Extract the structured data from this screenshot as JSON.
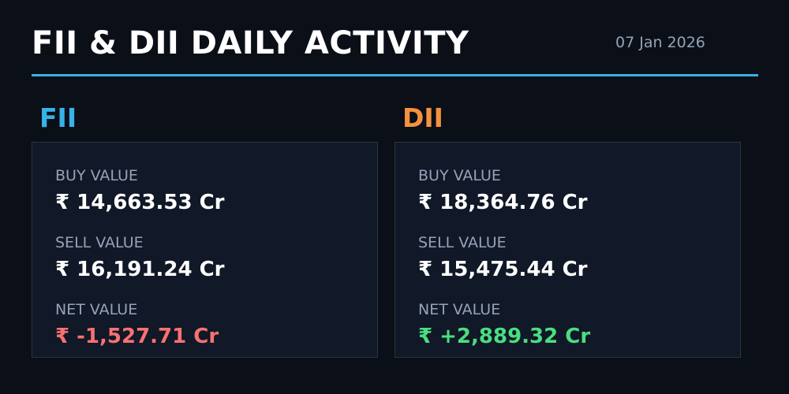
{
  "header": {
    "title": "FII & DII DAILY ACTIVITY",
    "date": "07 Jan 2026"
  },
  "colors": {
    "accent_rule": "#38b2e8",
    "fii": "#38b2e8",
    "dii": "#f5923e",
    "negative": "#f87171",
    "positive": "#4ade80"
  },
  "fii": {
    "label": "FII",
    "buy_label": "BUY VALUE",
    "buy_value": "₹ 14,663.53 Cr",
    "sell_label": "SELL VALUE",
    "sell_value": "₹ 16,191.24 Cr",
    "net_label": "NET VALUE",
    "net_value": "₹ -1,527.71 Cr"
  },
  "dii": {
    "label": "DII",
    "buy_label": "BUY VALUE",
    "buy_value": "₹ 18,364.76 Cr",
    "sell_label": "SELL VALUE",
    "sell_value": "₹ 15,475.44 Cr",
    "net_label": "NET VALUE",
    "net_value": "₹ +2,889.32 Cr"
  }
}
